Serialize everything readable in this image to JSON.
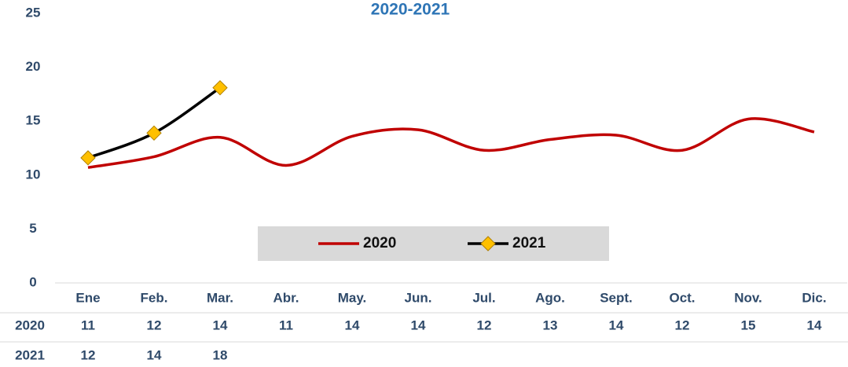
{
  "chart_data": {
    "type": "line",
    "title": "2020-2021",
    "categories": [
      "Ene",
      "Feb.",
      "Mar.",
      "Abr.",
      "May.",
      "Jun.",
      "Jul.",
      "Ago.",
      "Sept.",
      "Oct.",
      "Nov.",
      "Dic."
    ],
    "series": [
      {
        "name": "2020",
        "color": "#c00000",
        "values": [
          10.7,
          11.7,
          13.5,
          10.9,
          13.6,
          14.2,
          12.3,
          13.3,
          13.7,
          12.3,
          15.2,
          14.0
        ],
        "value_labels": [
          "11",
          "12",
          "14",
          "11",
          "14",
          "14",
          "12",
          "13",
          "14",
          "12",
          "15",
          "14"
        ]
      },
      {
        "name": "2021",
        "color": "#000000",
        "marker_color": "#ffc000",
        "values": [
          11.6,
          13.9,
          18.1,
          null,
          null,
          null,
          null,
          null,
          null,
          null,
          null,
          null
        ],
        "value_labels": [
          "12",
          "14",
          "18",
          null,
          null,
          null,
          null,
          null,
          null,
          null,
          null,
          null
        ]
      }
    ],
    "ylim": [
      0,
      25
    ],
    "yticks": [
      0,
      5,
      10,
      15,
      20,
      25
    ],
    "grid": false,
    "legend": "center"
  }
}
